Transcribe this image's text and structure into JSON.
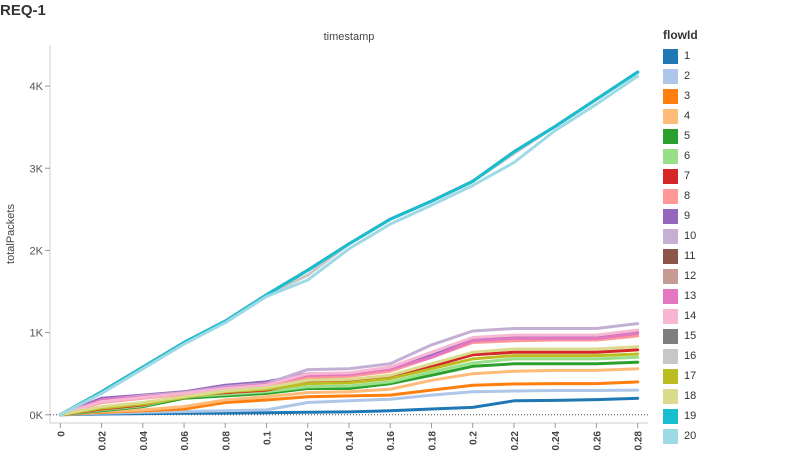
{
  "page": {
    "title": "REQ-1"
  },
  "legend": {
    "title": "flowId"
  },
  "series_colors": [
    "#1f77b4",
    "#aec7e8",
    "#ff7f0e",
    "#ffbb78",
    "#2ca02c",
    "#98df8a",
    "#d62728",
    "#ff9896",
    "#9467bd",
    "#c5b0d5",
    "#8c564b",
    "#c49c94",
    "#e377c2",
    "#f7b6d2",
    "#7f7f7f",
    "#c7c7c7",
    "#bcbd22",
    "#dbdb8d",
    "#17becf",
    "#9edae5"
  ],
  "chart_data": {
    "type": "line",
    "title": "timestamp",
    "xlabel": "",
    "ylabel": "totalPackets",
    "x": [
      0,
      0.02,
      0.04,
      0.06,
      0.08,
      0.1,
      0.12,
      0.14,
      0.16,
      0.18,
      0.2,
      0.22,
      0.24,
      0.26,
      0.28
    ],
    "x_tick_labels": [
      "0",
      "0.02",
      "0.04",
      "0.06",
      "0.08",
      "0.1",
      "0.12",
      "0.14",
      "0.16",
      "0.18",
      "0.2",
      "0.22",
      "0.24",
      "0.26",
      "0.28"
    ],
    "y_ticks": [
      0,
      1000,
      2000,
      3000,
      4000
    ],
    "y_tick_labels": [
      "0K",
      "1K",
      "2K",
      "3K",
      "4K"
    ],
    "ylim": [
      -100,
      4500
    ],
    "xlim": [
      -0.005,
      0.285
    ],
    "grid": false,
    "legend_position": "right",
    "series": [
      {
        "name": "1",
        "values": [
          0,
          10,
          15,
          18,
          20,
          25,
          30,
          35,
          50,
          70,
          90,
          170,
          175,
          185,
          200
        ]
      },
      {
        "name": "2",
        "values": [
          0,
          20,
          30,
          40,
          50,
          60,
          150,
          170,
          190,
          240,
          280,
          290,
          295,
          295,
          300
        ]
      },
      {
        "name": "3",
        "values": [
          0,
          30,
          50,
          70,
          150,
          180,
          220,
          230,
          240,
          300,
          360,
          375,
          380,
          380,
          400
        ]
      },
      {
        "name": "4",
        "values": [
          0,
          40,
          60,
          100,
          180,
          220,
          270,
          280,
          310,
          420,
          500,
          530,
          540,
          540,
          560
        ]
      },
      {
        "name": "5",
        "values": [
          0,
          50,
          100,
          200,
          230,
          260,
          320,
          320,
          380,
          480,
          590,
          620,
          620,
          620,
          640
        ]
      },
      {
        "name": "6",
        "values": [
          0,
          60,
          110,
          220,
          250,
          280,
          340,
          350,
          400,
          520,
          630,
          680,
          680,
          680,
          700
        ]
      },
      {
        "name": "7",
        "values": [
          0,
          70,
          120,
          230,
          270,
          300,
          400,
          410,
          460,
          590,
          730,
          760,
          760,
          760,
          790
        ]
      },
      {
        "name": "8",
        "values": [
          0,
          150,
          200,
          250,
          300,
          350,
          450,
          470,
          530,
          700,
          880,
          900,
          910,
          910,
          960
        ]
      },
      {
        "name": "9",
        "values": [
          0,
          200,
          240,
          280,
          360,
          400,
          500,
          500,
          560,
          720,
          910,
          950,
          950,
          950,
          1000
        ]
      },
      {
        "name": "10",
        "values": [
          0,
          180,
          230,
          270,
          340,
          380,
          550,
          560,
          620,
          850,
          1020,
          1050,
          1050,
          1050,
          1110
        ]
      },
      {
        "name": "11",
        "values": [
          0,
          280,
          580,
          880,
          1140,
          1460,
          1760,
          2080,
          2380,
          2600,
          2840,
          3200,
          3510,
          3840,
          4170
        ]
      },
      {
        "name": "12",
        "values": [
          0,
          280,
          580,
          880,
          1140,
          1460,
          1760,
          2080,
          2380,
          2600,
          2840,
          3200,
          3510,
          3840,
          4170
        ]
      },
      {
        "name": "13",
        "values": [
          0,
          180,
          220,
          260,
          330,
          370,
          480,
          490,
          560,
          700,
          900,
          930,
          930,
          930,
          990
        ]
      },
      {
        "name": "14",
        "values": [
          0,
          160,
          210,
          260,
          320,
          360,
          500,
          510,
          580,
          760,
          940,
          970,
          970,
          970,
          1030
        ]
      },
      {
        "name": "15",
        "values": [
          0,
          280,
          580,
          880,
          1140,
          1460,
          1760,
          2080,
          2380,
          2600,
          2840,
          3200,
          3510,
          3840,
          4170
        ]
      },
      {
        "name": "16",
        "values": [
          0,
          280,
          580,
          880,
          1140,
          1460,
          1700,
          2080,
          2380,
          2600,
          2840,
          3180,
          3510,
          3840,
          4170
        ]
      },
      {
        "name": "17",
        "values": [
          0,
          80,
          130,
          210,
          280,
          310,
          380,
          390,
          440,
          560,
          680,
          720,
          720,
          720,
          740
        ]
      },
      {
        "name": "18",
        "values": [
          0,
          100,
          150,
          220,
          290,
          330,
          420,
          430,
          480,
          620,
          760,
          800,
          800,
          800,
          830
        ]
      },
      {
        "name": "19",
        "values": [
          0,
          280,
          580,
          880,
          1140,
          1460,
          1760,
          2080,
          2380,
          2600,
          2840,
          3200,
          3510,
          3840,
          4170
        ]
      },
      {
        "name": "20",
        "values": [
          0,
          260,
          560,
          860,
          1120,
          1440,
          1640,
          2020,
          2320,
          2550,
          2790,
          3070,
          3460,
          3780,
          4120
        ]
      }
    ]
  }
}
